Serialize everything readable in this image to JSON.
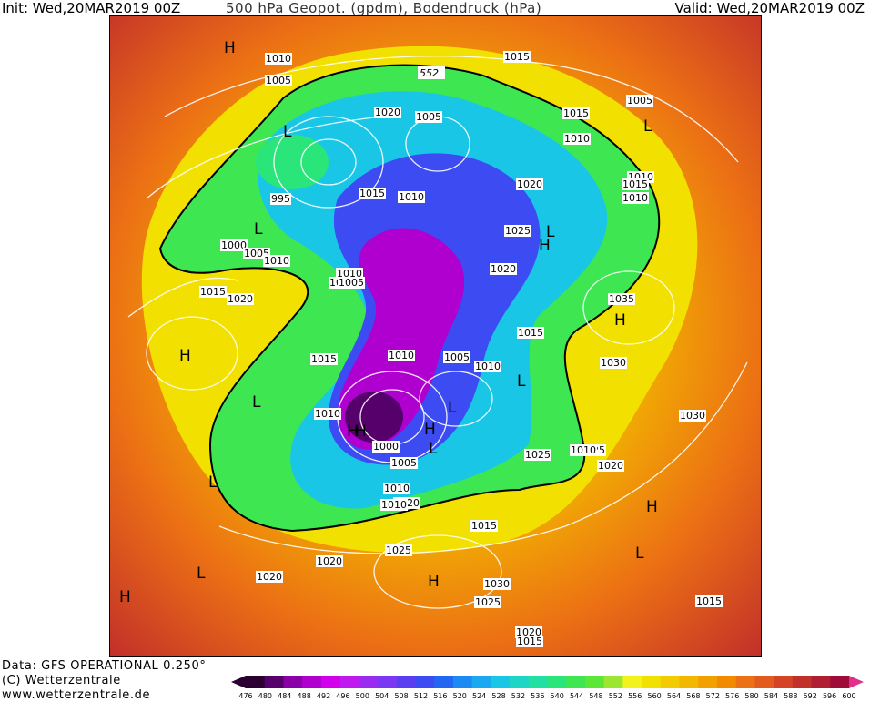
{
  "header": {
    "init": "Init: Wed,20MAR2019 00Z",
    "title": "500 hPa Geopot. (gpdm), Bodendruck (hPa)",
    "valid": "Valid: Wed,20MAR2019 00Z"
  },
  "footer": {
    "line1": "Data: GFS OPERATIONAL 0.250°",
    "line2": "(C) Wetterzentrale",
    "line3": "www.wetterzentrale.de"
  },
  "legend": {
    "ticks": [
      "476",
      "480",
      "484",
      "488",
      "492",
      "496",
      "500",
      "504",
      "508",
      "512",
      "516",
      "520",
      "524",
      "528",
      "532",
      "536",
      "540",
      "544",
      "548",
      "552",
      "556",
      "560",
      "564",
      "568",
      "572",
      "576",
      "580",
      "584",
      "588",
      "592",
      "596",
      "600"
    ],
    "colors": [
      "#2a0033",
      "#55006b",
      "#8a00a6",
      "#b000d0",
      "#d200ea",
      "#c019f0",
      "#9a2cf2",
      "#7b38f2",
      "#5a3ef2",
      "#3c4cf2",
      "#2266f2",
      "#1b8af2",
      "#1aa9f0",
      "#19c6e6",
      "#1ed6c6",
      "#22e0a2",
      "#2ae57a",
      "#3ee651",
      "#5ce638",
      "#9ae630",
      "#f2f21c",
      "#f2e000",
      "#f2cc00",
      "#f2b800",
      "#f2a000",
      "#f28a00",
      "#ec7014",
      "#e25a1e",
      "#d44424",
      "#c2302a",
      "#b01e32",
      "#a00c3a"
    ]
  },
  "map": {
    "contour_label_552": "552",
    "pressure_labels": [
      {
        "t": "1010"
      },
      {
        "t": "1005"
      },
      {
        "t": "1015"
      },
      {
        "t": "1020"
      },
      {
        "t": "1005"
      },
      {
        "t": "1015"
      },
      {
        "t": "1010"
      },
      {
        "t": "1005"
      },
      {
        "t": "1010"
      },
      {
        "t": "1015"
      },
      {
        "t": "1010"
      },
      {
        "t": "995"
      },
      {
        "t": "1015"
      },
      {
        "t": "1010"
      },
      {
        "t": "1020"
      },
      {
        "t": "1025"
      },
      {
        "t": "1000"
      },
      {
        "t": "1005"
      },
      {
        "t": "1010"
      },
      {
        "t": "1010"
      },
      {
        "t": "1005"
      },
      {
        "t": "1020"
      },
      {
        "t": "1015"
      },
      {
        "t": "1020"
      },
      {
        "t": "1035"
      },
      {
        "t": "1005"
      },
      {
        "t": "1015"
      },
      {
        "t": "1010"
      },
      {
        "t": "1030"
      },
      {
        "t": "1010"
      },
      {
        "t": "1005"
      },
      {
        "t": "1010"
      },
      {
        "t": "1000"
      },
      {
        "t": "1005"
      },
      {
        "t": "1010"
      },
      {
        "t": "1020"
      },
      {
        "t": "1025"
      },
      {
        "t": "1025"
      },
      {
        "t": "1020"
      },
      {
        "t": "1030"
      },
      {
        "t": "1015"
      },
      {
        "t": "1025"
      },
      {
        "t": "1020"
      },
      {
        "t": "1020"
      },
      {
        "t": "1030"
      },
      {
        "t": "1025"
      },
      {
        "t": "1020"
      },
      {
        "t": "1015"
      },
      {
        "t": "1015"
      },
      {
        "t": "1010"
      },
      {
        "t": "1010"
      },
      {
        "t": "1015"
      }
    ],
    "pressure_centers": [
      {
        "t": "H"
      },
      {
        "t": "L"
      },
      {
        "t": "L"
      },
      {
        "t": "L"
      },
      {
        "t": "H"
      },
      {
        "t": "L"
      },
      {
        "t": "H"
      },
      {
        "t": "H"
      },
      {
        "t": "L"
      },
      {
        "t": "L"
      },
      {
        "t": "L"
      },
      {
        "t": "H"
      },
      {
        "t": "H"
      },
      {
        "t": "L"
      },
      {
        "t": "L"
      },
      {
        "t": "H"
      },
      {
        "t": "L"
      },
      {
        "t": "H"
      },
      {
        "t": "H"
      },
      {
        "t": "L"
      },
      {
        "t": "H"
      }
    ]
  }
}
